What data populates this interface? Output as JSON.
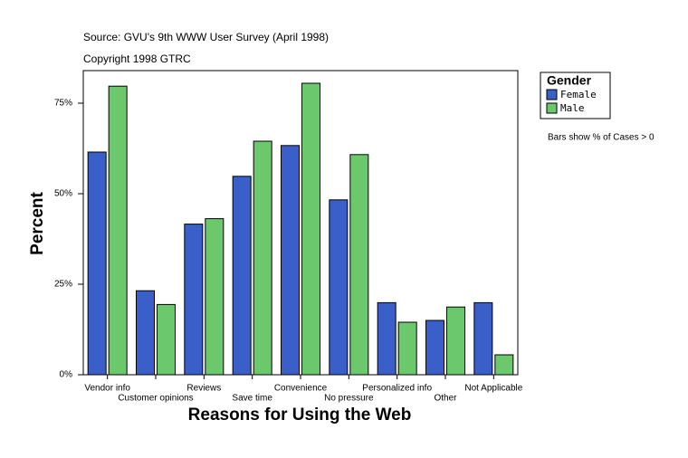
{
  "chart_data": {
    "type": "bar",
    "subtitle": "Source: GVU's 9th WWW User Survey (April 1998)",
    "copyright": "Copyright 1998 GTRC",
    "note": "Bars show % of Cases > 0",
    "xlabel": "Reasons for Using the Web",
    "ylabel": "Percent",
    "legend_title": "Gender",
    "categories": [
      "Vendor info",
      "Customer opinions",
      "Reviews",
      "Save time",
      "Convenience",
      "No pressure",
      "Personalized info",
      "Other",
      "Not Applicable"
    ],
    "series": [
      {
        "name": "Female",
        "color": "#3a5fc8",
        "values": [
          61.5,
          23.2,
          41.6,
          54.8,
          63.3,
          48.3,
          19.9,
          15.0,
          19.9
        ]
      },
      {
        "name": "Male",
        "color": "#6cc86c",
        "values": [
          79.7,
          19.4,
          43.1,
          64.5,
          80.5,
          60.8,
          14.5,
          18.7,
          5.5
        ]
      }
    ],
    "ylim": [
      0,
      84
    ],
    "yticks": [
      {
        "value": 0,
        "label": "0%"
      },
      {
        "value": 25,
        "label": "25%"
      },
      {
        "value": 50,
        "label": "50%"
      },
      {
        "value": 75,
        "label": "75%"
      }
    ]
  }
}
